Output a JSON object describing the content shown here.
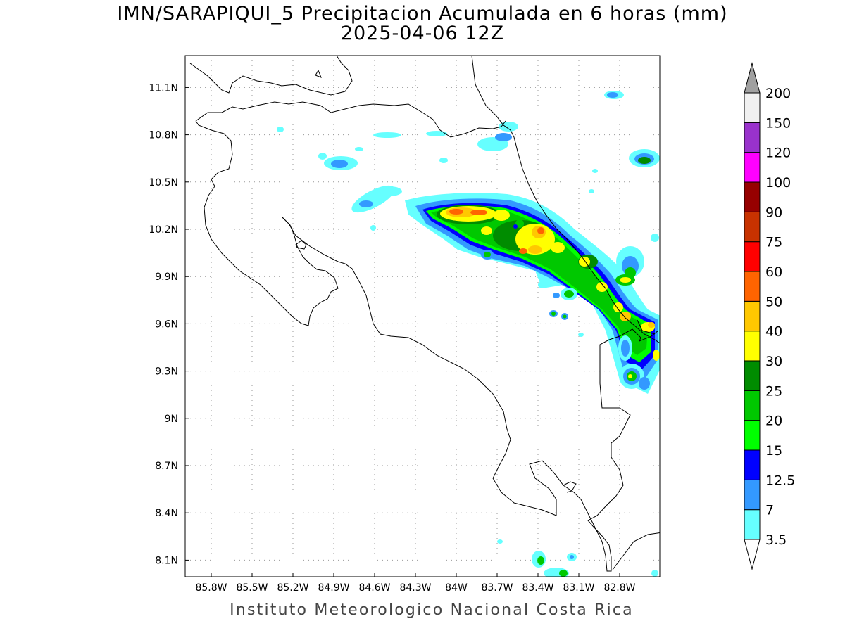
{
  "title": {
    "line1": "IMN/SARAPIQUI_5 Precipitacion Acumulada en 6 horas (mm)",
    "line2": "2025-04-06 12Z"
  },
  "credit": "Instituto Meteorologico Nacional Costa Rica",
  "map": {
    "lon_range": [
      -86.0,
      -83.0
    ],
    "lat_range": [
      8.0,
      11.3
    ],
    "x_ticks": [
      {
        "value": -85.8,
        "label": "85.8W"
      },
      {
        "value": -85.5,
        "label": "85.5W"
      },
      {
        "value": -85.2,
        "label": "85.2W"
      },
      {
        "value": -84.9,
        "label": "84.9W"
      },
      {
        "value": -84.6,
        "label": "84.6W"
      },
      {
        "value": -84.3,
        "label": "84.3W"
      },
      {
        "value": -84.0,
        "label": "84W"
      },
      {
        "value": -83.7,
        "label": "83.7W"
      },
      {
        "value": -83.4,
        "label": "83.4W"
      },
      {
        "value": -83.1,
        "label": "83.1W"
      },
      {
        "value": -82.8,
        "label": "82.8W"
      }
    ],
    "y_ticks": [
      {
        "value": 11.1,
        "label": "11.1N"
      },
      {
        "value": 10.8,
        "label": "10.8N"
      },
      {
        "value": 10.5,
        "label": "10.5N"
      },
      {
        "value": 10.2,
        "label": "10.2N"
      },
      {
        "value": 9.9,
        "label": "9.9N"
      },
      {
        "value": 9.6,
        "label": "9.6N"
      },
      {
        "value": 9.3,
        "label": "9.3N"
      },
      {
        "value": 9.0,
        "label": "9N"
      },
      {
        "value": 8.7,
        "label": "8.7N"
      },
      {
        "value": 8.4,
        "label": "8.4N"
      },
      {
        "value": 8.1,
        "label": "8.1N"
      }
    ],
    "gridlines": "dotted"
  },
  "colorbar": {
    "orientation": "vertical",
    "over_color": "#a0a0a0",
    "under_color": "#ffffff",
    "levels": [
      {
        "label": "3.5",
        "color": "#66ffff"
      },
      {
        "label": "7",
        "color": "#3399ff"
      },
      {
        "label": "12.5",
        "color": "#0000ff"
      },
      {
        "label": "15",
        "color": "#00ff00"
      },
      {
        "label": "20",
        "color": "#00c800"
      },
      {
        "label": "25",
        "color": "#008c00"
      },
      {
        "label": "30",
        "color": "#ffff00"
      },
      {
        "label": "40",
        "color": "#ffc800"
      },
      {
        "label": "50",
        "color": "#ff6400"
      },
      {
        "label": "60",
        "color": "#ff0000"
      },
      {
        "label": "75",
        "color": "#c83200"
      },
      {
        "label": "90",
        "color": "#960000"
      },
      {
        "label": "100",
        "color": "#ff00ff"
      },
      {
        "label": "120",
        "color": "#9932cc"
      },
      {
        "label": "150",
        "color": "#f0f0f0"
      },
      {
        "label": "200",
        "color": ""
      }
    ]
  }
}
